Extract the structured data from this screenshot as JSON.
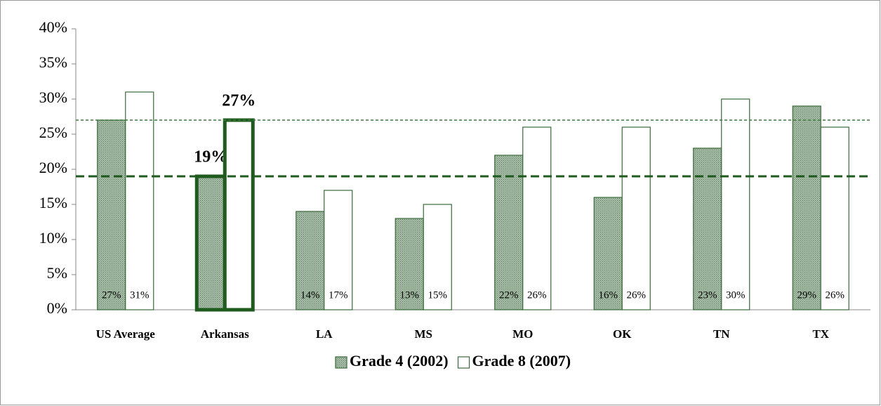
{
  "chart_data": {
    "type": "bar",
    "categories": [
      "US Average",
      "Arkansas",
      "LA",
      "MS",
      "MO",
      "OK",
      "TN",
      "TX"
    ],
    "series": [
      {
        "name": "Grade 4 (2002)",
        "color": "#8fa88f",
        "values": [
          27,
          19,
          14,
          13,
          22,
          16,
          23,
          29
        ],
        "value_labels": [
          "27%",
          "19%",
          "14%",
          "13%",
          "22%",
          "16%",
          "23%",
          "29%"
        ]
      },
      {
        "name": "Grade 8 (2007)",
        "color": "#ffffff",
        "values": [
          31,
          27,
          17,
          15,
          26,
          26,
          30,
          26
        ],
        "value_labels": [
          "31%",
          "27%",
          "17%",
          "15%",
          "26%",
          "26%",
          "30%",
          "26%"
        ]
      }
    ],
    "ylim": [
      0,
      40
    ],
    "yticks": [
      {
        "value": 0,
        "label": "0%"
      },
      {
        "value": 5,
        "label": "5%"
      },
      {
        "value": 10,
        "label": "10%"
      },
      {
        "value": 15,
        "label": "15%"
      },
      {
        "value": 20,
        "label": "20%"
      },
      {
        "value": 25,
        "label": "25%"
      },
      {
        "value": 30,
        "label": "30%"
      },
      {
        "value": 35,
        "label": "35%"
      },
      {
        "value": 40,
        "label": "40%"
      }
    ],
    "highlight_index": 1,
    "highlight_color": "#1f5a1f",
    "reference_lines": [
      {
        "value": 27,
        "color": "#3f7a3f"
      },
      {
        "value": 19,
        "color": "#1f5a1f"
      }
    ],
    "grid": false,
    "legend": "bottom"
  }
}
